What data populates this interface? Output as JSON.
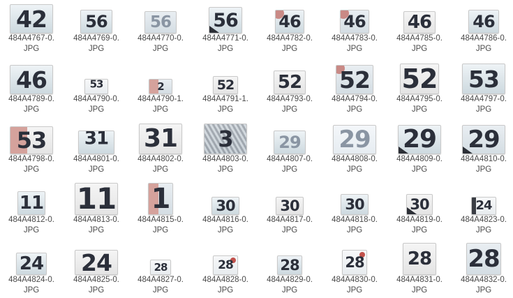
{
  "gallery": {
    "files": [
      {
        "line1": "484A4767-0.",
        "line2": "JPG",
        "bib": "42"
      },
      {
        "line1": "484A4769-0.",
        "line2": "JPG",
        "bib": "56"
      },
      {
        "line1": "484A4770-0.",
        "line2": "JPG",
        "bib": "56"
      },
      {
        "line1": "484A4771-0.",
        "line2": "JPG",
        "bib": "56"
      },
      {
        "line1": "484A4782-0.",
        "line2": "JPG",
        "bib": "46"
      },
      {
        "line1": "484A4783-0.",
        "line2": "JPG",
        "bib": "46"
      },
      {
        "line1": "484A4785-0.",
        "line2": "JPG",
        "bib": "46"
      },
      {
        "line1": "484A4786-0.",
        "line2": "JPG",
        "bib": "46"
      },
      {
        "line1": "484A4789-0.",
        "line2": "JPG",
        "bib": "46"
      },
      {
        "line1": "484A4790-0.",
        "line2": "JPG",
        "bib": "53"
      },
      {
        "line1": "484A4790-1.",
        "line2": "JPG",
        "bib": "2"
      },
      {
        "line1": "484A4791-1.",
        "line2": "JPG",
        "bib": "52"
      },
      {
        "line1": "484A4793-0.",
        "line2": "JPG",
        "bib": "52"
      },
      {
        "line1": "484A4794-0.",
        "line2": "JPG",
        "bib": "52"
      },
      {
        "line1": "484A4795-0.",
        "line2": "JPG",
        "bib": "52"
      },
      {
        "line1": "484A4797-0.",
        "line2": "JPG",
        "bib": "53"
      },
      {
        "line1": "484A4798-0.",
        "line2": "JPG",
        "bib": "53"
      },
      {
        "line1": "484A4801-0.",
        "line2": "JPG",
        "bib": "31"
      },
      {
        "line1": "484A4802-0.",
        "line2": "JPG",
        "bib": "31"
      },
      {
        "line1": "484A4803-0.",
        "line2": "JPG",
        "bib": "3"
      },
      {
        "line1": "484A4807-0.",
        "line2": "JPG",
        "bib": "29"
      },
      {
        "line1": "484A4808-0.",
        "line2": "JPG",
        "bib": "29"
      },
      {
        "line1": "484A4809-0.",
        "line2": "JPG",
        "bib": "29"
      },
      {
        "line1": "484A4810-0.",
        "line2": "JPG",
        "bib": "29"
      },
      {
        "line1": "484A4812-0.",
        "line2": "JPG",
        "bib": "11"
      },
      {
        "line1": "484A4813-0.",
        "line2": "JPG",
        "bib": "11"
      },
      {
        "line1": "484A4815-0.",
        "line2": "JPG",
        "bib": "1"
      },
      {
        "line1": "484A4816-0.",
        "line2": "JPG",
        "bib": "30"
      },
      {
        "line1": "484A4817-0.",
        "line2": "JPG",
        "bib": "30"
      },
      {
        "line1": "484A4818-0.",
        "line2": "JPG",
        "bib": "30"
      },
      {
        "line1": "484A4819-0.",
        "line2": "JPG",
        "bib": "30"
      },
      {
        "line1": "484A4823-0.",
        "line2": "JPG",
        "bib": "24"
      },
      {
        "line1": "484A4824-0.",
        "line2": "JPG",
        "bib": "24"
      },
      {
        "line1": "484A4825-0.",
        "line2": "JPG",
        "bib": "24"
      },
      {
        "line1": "484A4827-0.",
        "line2": "JPG",
        "bib": "28"
      },
      {
        "line1": "484A4828-0.",
        "line2": "JPG",
        "bib": "28"
      },
      {
        "line1": "484A4829-0.",
        "line2": "JPG",
        "bib": "28"
      },
      {
        "line1": "484A4830-0.",
        "line2": "JPG",
        "bib": "28"
      },
      {
        "line1": "484A4831-0.",
        "line2": "JPG",
        "bib": "28"
      },
      {
        "line1": "484A4832-0.",
        "line2": "JPG",
        "bib": "28"
      }
    ]
  }
}
